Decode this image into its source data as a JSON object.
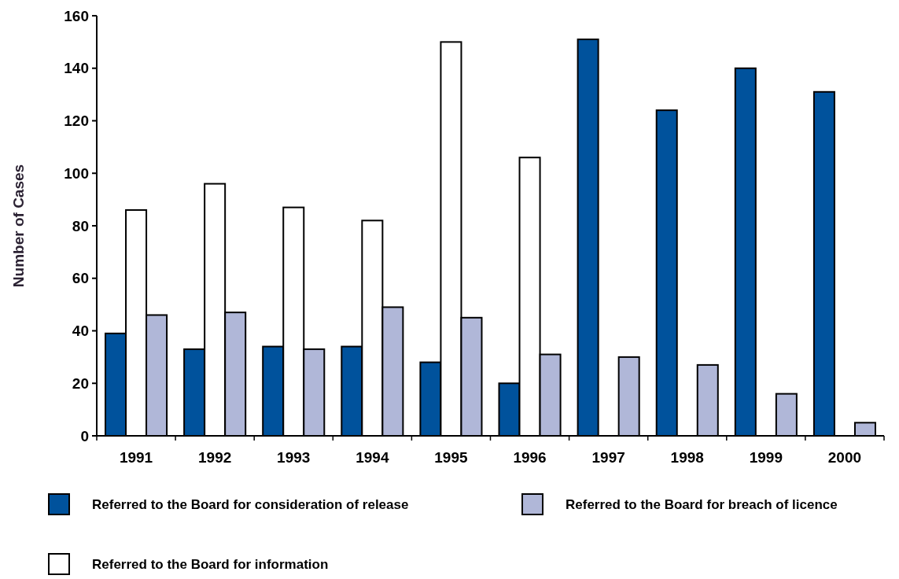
{
  "chart_data": {
    "type": "bar",
    "ylabel": "Number of Cases",
    "categories": [
      "1991",
      "1992",
      "1993",
      "1994",
      "1995",
      "1996",
      "1997",
      "1998",
      "1999",
      "2000"
    ],
    "series": [
      {
        "name": "Referred to the Board for consideration of release",
        "color": "#00529c",
        "values": [
          39,
          33,
          34,
          34,
          28,
          20,
          151,
          124,
          140,
          131
        ]
      },
      {
        "name": "Referred to the Board for information",
        "color": "#ffffff",
        "values": [
          86,
          96,
          87,
          82,
          150,
          106,
          null,
          null,
          null,
          null
        ]
      },
      {
        "name": "Referred to the Board for breach of licence",
        "color": "#b0b7d8",
        "values": [
          46,
          47,
          33,
          49,
          45,
          31,
          30,
          27,
          16,
          5
        ]
      }
    ],
    "ylim": [
      0,
      160
    ],
    "yticks": [
      0,
      20,
      40,
      60,
      80,
      100,
      120,
      140,
      160
    ],
    "grid": false,
    "legend": "bottom"
  }
}
